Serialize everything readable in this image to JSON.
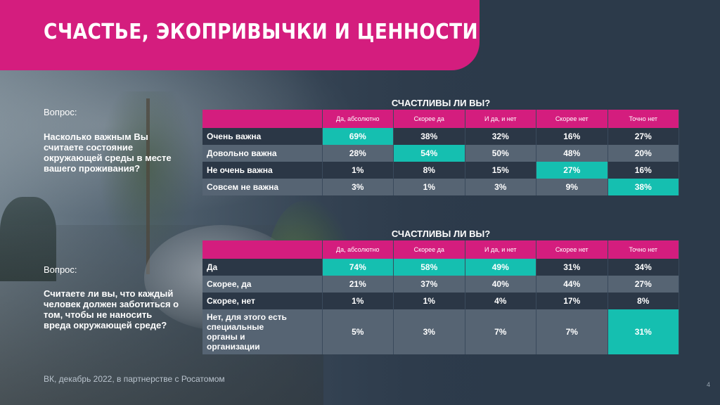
{
  "header": {
    "title": "СЧАСТЬЕ, ЭКОПРИВЫЧКИ И ЦЕННОСТИ"
  },
  "accent_colors": {
    "brand_pink": "#d41d7e",
    "highlight_teal": "#15bfb0"
  },
  "block1": {
    "question_label": "Вопрос:",
    "question_text": "Насколько важным Вы считаете состояние окружающей среды в месте вашего проживания?",
    "table_title": "СЧАСТЛИВЫ ЛИ ВЫ?",
    "columns": [
      "Да, абсолютно",
      "Скорее да",
      "И да, и нет",
      "Скорее нет",
      "Точно нет"
    ],
    "rows": [
      {
        "label": "Очень важна",
        "values": [
          "69%",
          "38%",
          "32%",
          "16%",
          "27%"
        ],
        "highlight": 0
      },
      {
        "label": "Довольно важна",
        "values": [
          "28%",
          "54%",
          "50%",
          "48%",
          "20%"
        ],
        "highlight": 1
      },
      {
        "label": "Не очень важна",
        "values": [
          "1%",
          "8%",
          "15%",
          "27%",
          "16%"
        ],
        "highlight": 3
      },
      {
        "label": "Совсем не важна",
        "values": [
          "3%",
          "1%",
          "3%",
          "9%",
          "38%"
        ],
        "highlight": 4
      }
    ]
  },
  "block2": {
    "question_label": "Вопрос:",
    "question_text": "Считаете ли вы, что каждый человек должен заботиться о том, чтобы не наносить вреда окружающей среде?",
    "table_title": "СЧАСТЛИВЫ ЛИ ВЫ?",
    "columns": [
      "Да, абсолютно",
      "Скорее да",
      "И да, и нет",
      "Скорее нет",
      "Точно нет"
    ],
    "rows": [
      {
        "label": "Да",
        "values": [
          "74%",
          "58%",
          "49%",
          "31%",
          "34%"
        ],
        "highlight": [
          0,
          1,
          2
        ]
      },
      {
        "label": "Скорее, да",
        "values": [
          "21%",
          "37%",
          "40%",
          "44%",
          "27%"
        ],
        "highlight": []
      },
      {
        "label": "Скорее, нет",
        "values": [
          "1%",
          "1%",
          "4%",
          "17%",
          "8%"
        ],
        "highlight": []
      },
      {
        "label": "Нет, для этого есть специальные органы и организации",
        "values": [
          "5%",
          "3%",
          "7%",
          "7%",
          "31%"
        ],
        "highlight": [
          4
        ]
      }
    ]
  },
  "footer": {
    "source": "ВК, декабрь 2022, в партнерстве с Росатомом",
    "page_number": "4"
  }
}
